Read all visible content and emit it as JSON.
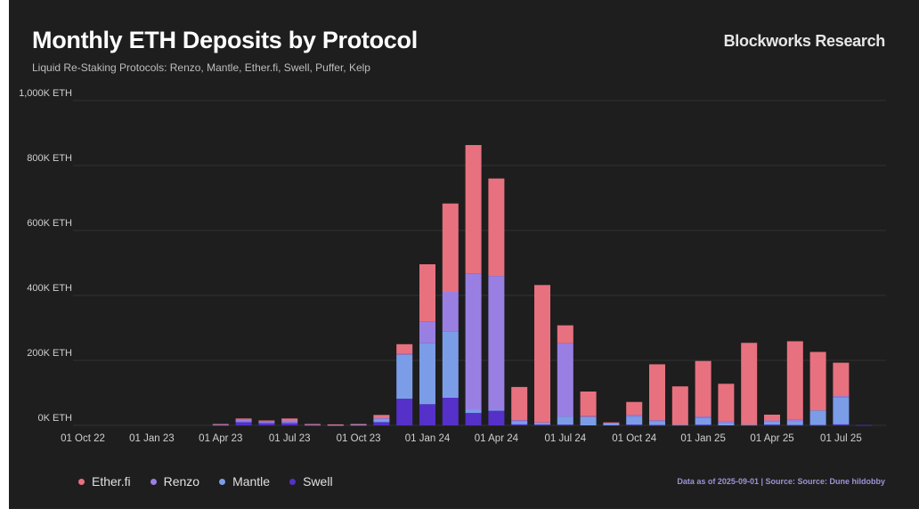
{
  "header": {
    "title": "Monthly ETH Deposits by Protocol",
    "subtitle": "Liquid Re-Staking Protocols: Renzo, Mantle, Ether.fi, Swell, Puffer, Kelp",
    "brand": "Blockworks Research"
  },
  "footer": {
    "note": "Data as of 2025-09-01 | Source: Source: Dune hildobby"
  },
  "colors": {
    "background": "#1e1e1e",
    "Ether.fi": "#e8717f",
    "Renzo": "#9a7fe3",
    "Mantle": "#7b9de8",
    "Swell": "#5530c9",
    "grid": "#333333",
    "axis_text": "#d0d0d0"
  },
  "legend": [
    {
      "name": "Ether.fi",
      "color": "#e8717f"
    },
    {
      "name": "Renzo",
      "color": "#9a7fe3"
    },
    {
      "name": "Mantle",
      "color": "#7b9de8"
    },
    {
      "name": "Swell",
      "color": "#5530c9"
    }
  ],
  "chart_data": {
    "type": "bar",
    "stacked": true,
    "title": "Monthly ETH Deposits by Protocol",
    "subtitle": "Liquid Re-Staking Protocols: Renzo, Mantle, Ether.fi, Swell, Puffer, Kelp",
    "ylabel": "",
    "xlabel": "",
    "ylim": [
      0,
      1000
    ],
    "y_unit": "K ETH",
    "y_ticks": [
      0,
      200,
      400,
      600,
      800,
      1000
    ],
    "y_tick_labels": [
      "0K ETH",
      "200K ETH",
      "400K ETH",
      "600K ETH",
      "800K ETH",
      "1,000K ETH"
    ],
    "x_tick_labels": [
      "01 Oct 22",
      "01 Jan 23",
      "01 Apr 23",
      "01 Jul 23",
      "01 Oct 23",
      "01 Jan 24",
      "01 Apr 24",
      "01 Jul 24",
      "01 Oct 24",
      "01 Jan 25",
      "01 Apr 25",
      "01 Jul 25"
    ],
    "x_tick_category_index": [
      0,
      3,
      6,
      9,
      12,
      15,
      18,
      21,
      24,
      27,
      30,
      33
    ],
    "grid": true,
    "legend_position": "bottom-left",
    "categories": [
      "2022-10",
      "2022-11",
      "2022-12",
      "2023-01",
      "2023-02",
      "2023-03",
      "2023-04",
      "2023-05",
      "2023-06",
      "2023-07",
      "2023-08",
      "2023-09",
      "2023-10",
      "2023-11",
      "2023-12",
      "2024-01",
      "2024-02",
      "2024-03",
      "2024-04",
      "2024-05",
      "2024-06",
      "2024-07",
      "2024-08",
      "2024-09",
      "2024-10",
      "2024-11",
      "2024-12",
      "2025-01",
      "2025-02",
      "2025-03",
      "2025-04",
      "2025-05",
      "2025-06",
      "2025-07",
      "2025-08"
    ],
    "series": [
      {
        "name": "Swell",
        "values": [
          0,
          0,
          0,
          0,
          0,
          0,
          1,
          10,
          8,
          8,
          1,
          0,
          1,
          10,
          82,
          65,
          85,
          38,
          45,
          3,
          2,
          2,
          0,
          0,
          2,
          1,
          0,
          2,
          0,
          0,
          2,
          1,
          1,
          3,
          1
        ]
      },
      {
        "name": "Mantle",
        "values": [
          0,
          0,
          0,
          0,
          0,
          0,
          0,
          2,
          1,
          1,
          0,
          1,
          1,
          10,
          135,
          188,
          203,
          10,
          3,
          8,
          5,
          25,
          25,
          4,
          25,
          10,
          2,
          20,
          8,
          2,
          10,
          10,
          45,
          82,
          0
        ]
      },
      {
        "name": "Renzo",
        "values": [
          0,
          0,
          0,
          0,
          0,
          0,
          1,
          6,
          4,
          6,
          1,
          1,
          1,
          2,
          3,
          67,
          123,
          420,
          412,
          5,
          2,
          226,
          3,
          3,
          5,
          5,
          0,
          5,
          4,
          0,
          3,
          6,
          0,
          5,
          0
        ]
      },
      {
        "name": "Ether.fi",
        "values": [
          0,
          0,
          0,
          0,
          0,
          0,
          2,
          3,
          2,
          6,
          2,
          1,
          1,
          10,
          30,
          176,
          272,
          395,
          300,
          102,
          423,
          55,
          76,
          2,
          40,
          172,
          118,
          171,
          116,
          252,
          18,
          242,
          180,
          103,
          0
        ]
      }
    ]
  }
}
